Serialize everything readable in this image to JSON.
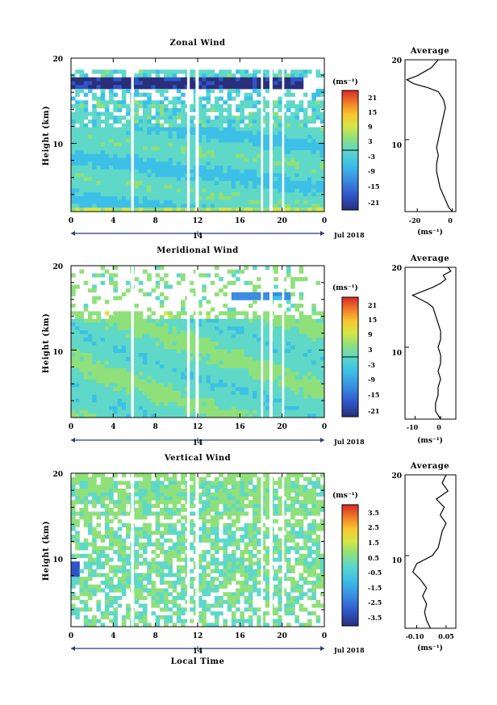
{
  "chart_data": [
    {
      "type": "heatmap",
      "title": "Zonal Wind",
      "ylabel": "Height (km)",
      "yticks": [
        "20",
        "10"
      ],
      "xticks": [
        "0",
        "4",
        "8",
        "12",
        "16",
        "20",
        "0"
      ],
      "date_label": "14",
      "month_label": "Jul 2018",
      "colorbar": {
        "unit": "(ms⁻¹)",
        "ticks": [
          "21",
          "15",
          "9",
          "3",
          "-3",
          "-9",
          "-15",
          "-21"
        ],
        "range": [
          -24,
          24
        ]
      },
      "missing_hours": [
        [
          5.7,
          5.95
        ],
        [
          11.0,
          11.25
        ],
        [
          11.8,
          12.1
        ],
        [
          18.0,
          18.2
        ],
        [
          18.8,
          19.1
        ],
        [
          20.0,
          20.2
        ]
      ],
      "average": {
        "title": "Average",
        "xlabel": "(ms⁻¹)",
        "xticks": [
          "-20",
          "0"
        ],
        "xlim": [
          -27,
          2
        ],
        "yticks": [
          "20",
          "10"
        ],
        "height_km": [
          1,
          1.5,
          2,
          2.5,
          3,
          3.5,
          4,
          5,
          6,
          7,
          8,
          9,
          10,
          11,
          12,
          13,
          14,
          15,
          16,
          16.5,
          17,
          17.5,
          18,
          18.5,
          19,
          19.5,
          20
        ],
        "wind_ms": [
          0,
          -2,
          -3,
          -4,
          -5,
          -6,
          -7,
          -8,
          -9,
          -9,
          -8,
          -9,
          -8,
          -7,
          -6,
          -5,
          -4,
          -5,
          -8,
          -14,
          -22,
          -26,
          -20,
          -16,
          -12,
          -10,
          -8
        ]
      }
    },
    {
      "type": "heatmap",
      "title": "Meridional Wind",
      "ylabel": "Height (km)",
      "yticks": [
        "20",
        "10"
      ],
      "xticks": [
        "0",
        "4",
        "8",
        "12",
        "16",
        "20",
        "0"
      ],
      "date_label": "14",
      "month_label": "Jul 2018",
      "colorbar": {
        "unit": "(ms⁻¹)",
        "ticks": [
          "21",
          "15",
          "9",
          "3",
          "-3",
          "-9",
          "-15",
          "-21"
        ],
        "range": [
          -24,
          24
        ]
      },
      "missing_hours": [
        [
          5.7,
          5.95
        ],
        [
          11.0,
          11.25
        ],
        [
          11.8,
          12.1
        ],
        [
          18.0,
          18.2
        ],
        [
          18.8,
          19.1
        ],
        [
          20.0,
          20.2
        ]
      ],
      "average": {
        "title": "Average",
        "xlabel": "(ms⁻¹)",
        "xticks": [
          "-10",
          "0"
        ],
        "xlim": [
          -14,
          6
        ],
        "yticks": [
          "20",
          "10"
        ],
        "height_km": [
          1,
          1.5,
          2,
          3,
          4,
          5,
          6,
          7,
          8,
          9,
          10,
          11,
          12,
          13,
          14,
          15,
          15.5,
          16,
          16.5,
          17,
          17.5,
          18,
          18.5,
          19,
          19.5,
          20
        ],
        "wind_ms": [
          0,
          -1,
          -2,
          -2,
          -1,
          -1,
          0,
          -1,
          0,
          0,
          -1,
          0,
          0,
          -1,
          -2,
          -3,
          -5,
          -8,
          -11,
          -7,
          -3,
          0,
          2,
          1,
          4,
          3
        ]
      }
    },
    {
      "type": "heatmap",
      "title": "Vertical Wind",
      "ylabel": "Height (km)",
      "xlabel": "Local Time",
      "yticks": [
        "20",
        "10"
      ],
      "xticks": [
        "0",
        "4",
        "8",
        "12",
        "16",
        "20",
        "0"
      ],
      "date_label": "14",
      "month_label": "Jul 2018",
      "colorbar": {
        "unit": "(ms⁻¹)",
        "ticks": [
          "3.5",
          "2.5",
          "1.5",
          "0.5",
          "-0.5",
          "-1.5",
          "-2.5",
          "-3.5"
        ],
        "range": [
          -4,
          4
        ]
      },
      "missing_hours": [
        [
          5.7,
          5.95
        ],
        [
          11.0,
          11.25
        ],
        [
          11.8,
          12.1
        ],
        [
          18.0,
          18.2
        ],
        [
          18.8,
          19.1
        ],
        [
          20.0,
          20.2
        ]
      ],
      "average": {
        "title": "Average",
        "xlabel": "(ms⁻¹)",
        "xticks": [
          "-0.10",
          "0.05"
        ],
        "xlim": [
          -0.16,
          0.1
        ],
        "yticks": [
          "20",
          "10"
        ],
        "height_km": [
          1,
          2,
          3,
          4,
          5,
          6,
          7,
          8,
          9,
          10,
          11,
          12,
          13,
          14,
          15,
          16,
          17,
          18,
          19,
          20
        ],
        "wind_ms": [
          -0.03,
          -0.05,
          -0.06,
          -0.05,
          -0.07,
          -0.05,
          -0.08,
          -0.12,
          -0.1,
          -0.02,
          0.01,
          0.02,
          0.03,
          0.05,
          0.02,
          0.04,
          0.0,
          0.06,
          0.03,
          0.05
        ]
      }
    }
  ]
}
